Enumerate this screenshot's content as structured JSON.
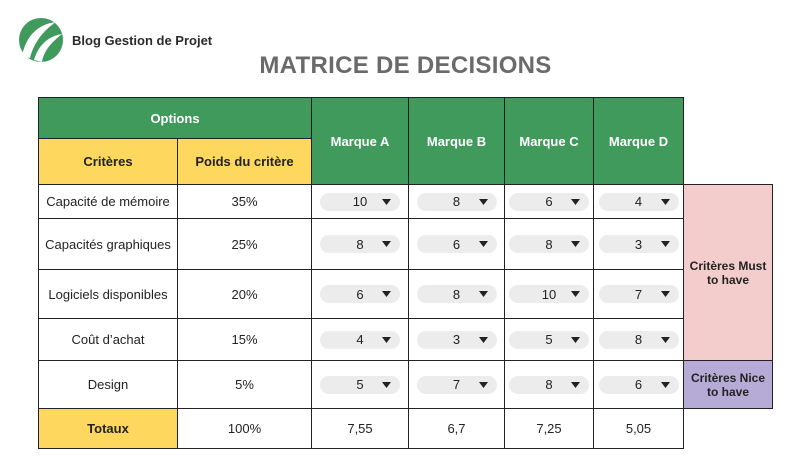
{
  "brand": {
    "name": "Blog Gestion de Projet",
    "color": "#3f9a5c"
  },
  "title": "MATRICE DE DECISIONS",
  "header": {
    "options": "Options",
    "criteres": "Critères",
    "poids": "Poids du critère",
    "brands": [
      "Marque A",
      "Marque B",
      "Marque C",
      "Marque D"
    ]
  },
  "rows": [
    {
      "critere": "Capacité de mémoire",
      "poids": "35%",
      "scores": [
        "10",
        "8",
        "6",
        "4"
      ]
    },
    {
      "critere": "Capacités graphiques",
      "poids": "25%",
      "scores": [
        "8",
        "6",
        "8",
        "3"
      ]
    },
    {
      "critere": "Logiciels disponibles",
      "poids": "20%",
      "scores": [
        "6",
        "8",
        "10",
        "7"
      ]
    },
    {
      "critere": "Coût d’achat",
      "poids": "15%",
      "scores": [
        "4",
        "3",
        "5",
        "8"
      ]
    },
    {
      "critere": "Design",
      "poids": "5%",
      "scores": [
        "5",
        "7",
        "8",
        "6"
      ]
    }
  ],
  "totals": {
    "label": "Totaux",
    "poids": "100%",
    "values": [
      "7,55",
      "6,7",
      "7,25",
      "5,05"
    ]
  },
  "groups": {
    "must": "Critères Must to have",
    "nice": "Critères Nice to have"
  },
  "colors": {
    "header_green": "#3f9a5c",
    "header_yellow": "#fed75f",
    "must_bg": "#f3cccc",
    "nice_bg": "#b6abd6",
    "dropdown_bg": "#ececec"
  },
  "icons": {
    "logo": "leaf-logo-icon",
    "dropdown": "caret-down-icon"
  }
}
